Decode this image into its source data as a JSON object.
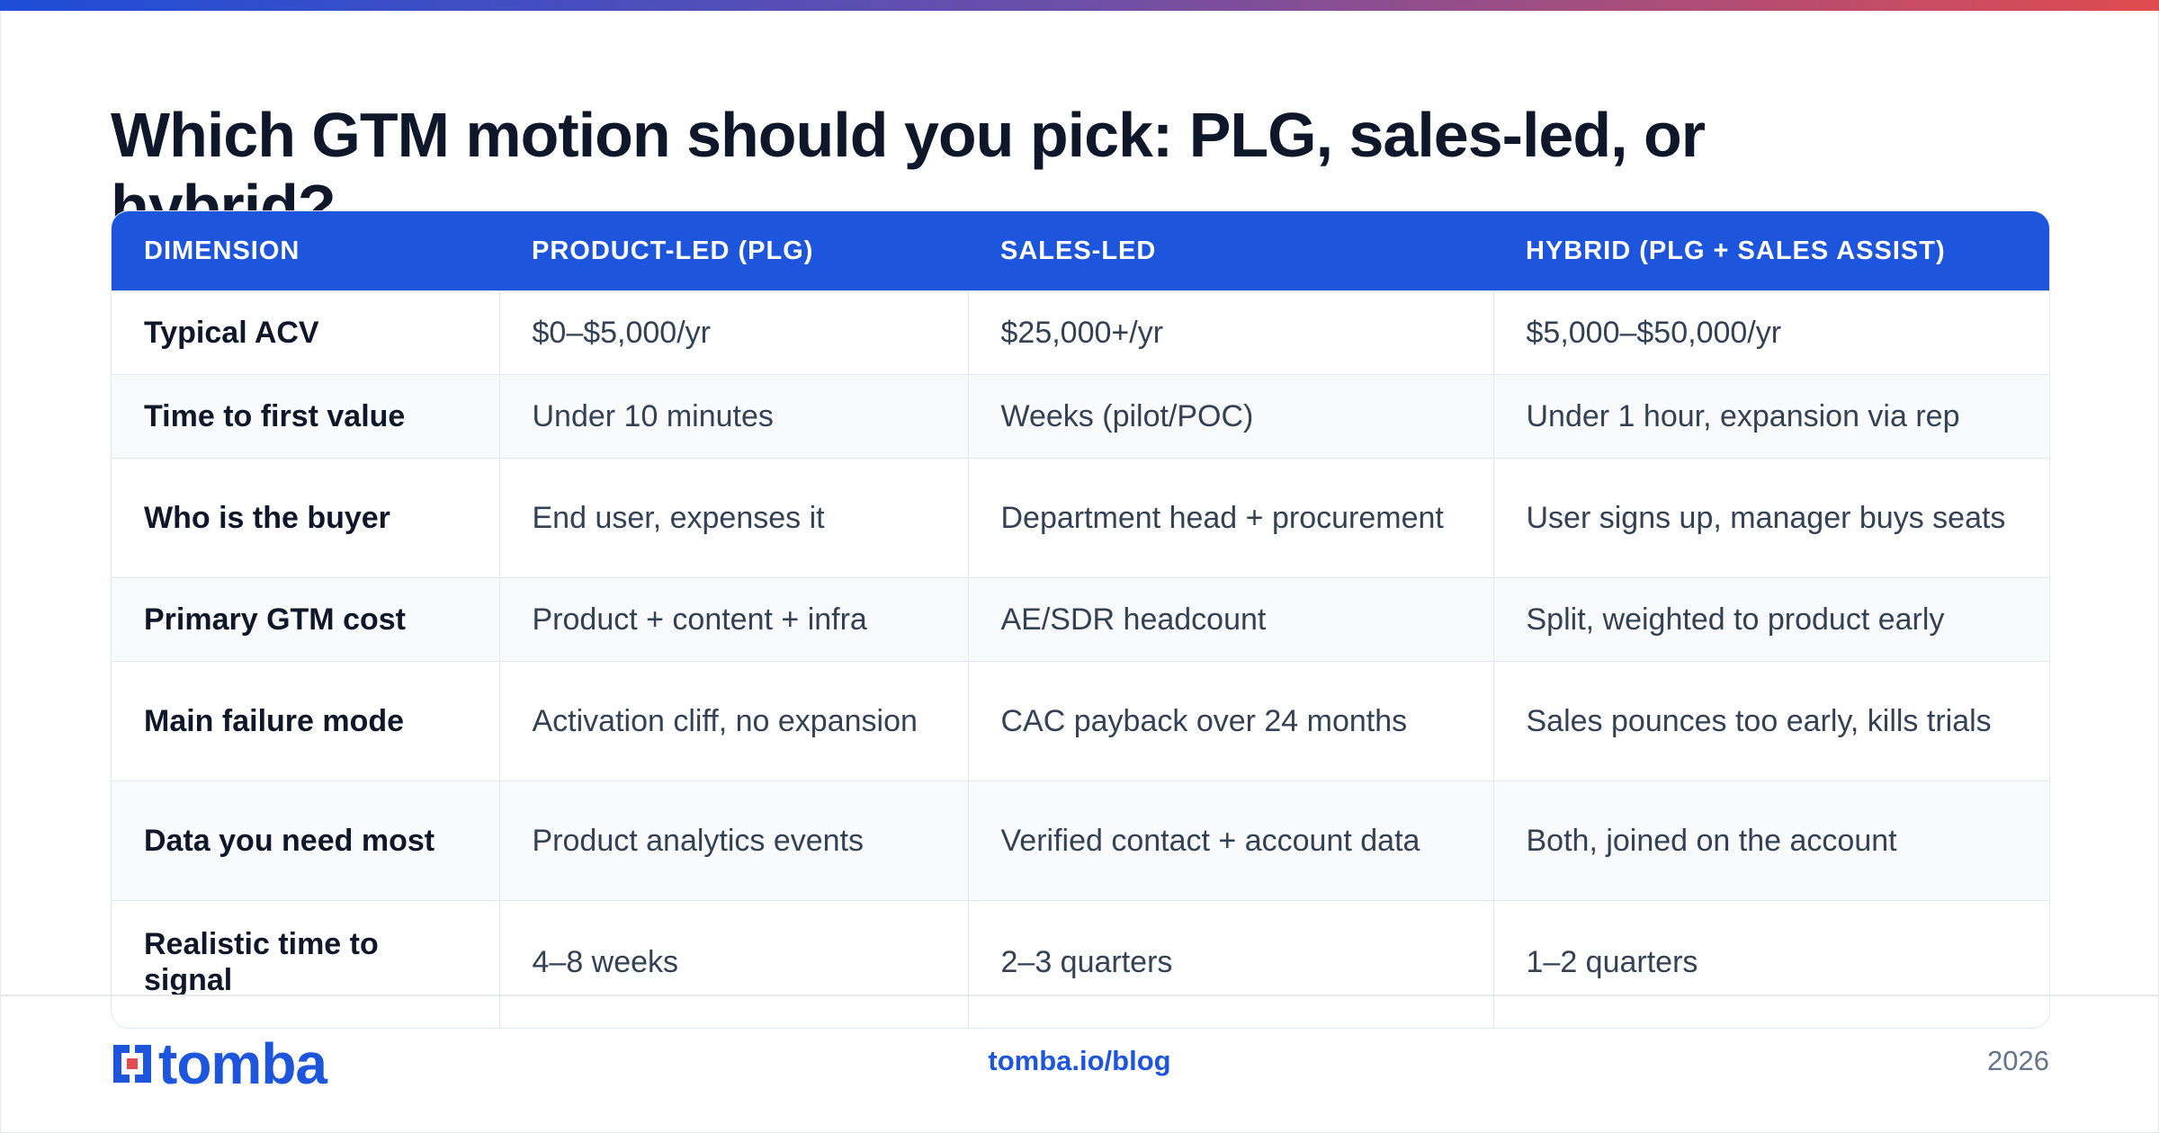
{
  "title": "Which GTM motion should you pick: PLG, sales-led, or hybrid?",
  "table": {
    "headers": [
      "DIMENSION",
      "PRODUCT-LED (PLG)",
      "SALES-LED",
      "HYBRID (PLG + SALES ASSIST)"
    ],
    "rows": [
      [
        "Typical ACV",
        "$0–$5,000/yr",
        "$25,000+/yr",
        "$5,000–$50,000/yr"
      ],
      [
        "Time to first value",
        "Under 10 minutes",
        "Weeks (pilot/POC)",
        "Under 1 hour, expansion via rep"
      ],
      [
        "Who is the buyer",
        "End user, expenses it",
        "Department head + procurement",
        "User signs up, manager buys seats"
      ],
      [
        "Primary GTM cost",
        "Product + content + infra",
        "AE/SDR headcount",
        "Split, weighted to product early"
      ],
      [
        "Main failure mode",
        "Activation cliff, no expansion",
        "CAC payback over 24 months",
        "Sales pounces too early, kills trials"
      ],
      [
        "Data you need most",
        "Product analytics events",
        "Verified contact + account data",
        "Both, joined on the account"
      ],
      [
        "Realistic time to signal",
        "4–8 weeks",
        "2–3 quarters",
        "1–2 quarters"
      ]
    ]
  },
  "footer": {
    "logo_text": "tomba",
    "url": "tomba.io/blog",
    "year": "2026"
  },
  "colors": {
    "accent": "#1d55dc",
    "header_bg": "#1d55dc",
    "gradient": [
      "#1d4ed8",
      "#6d4fa8",
      "#e04c50"
    ]
  }
}
